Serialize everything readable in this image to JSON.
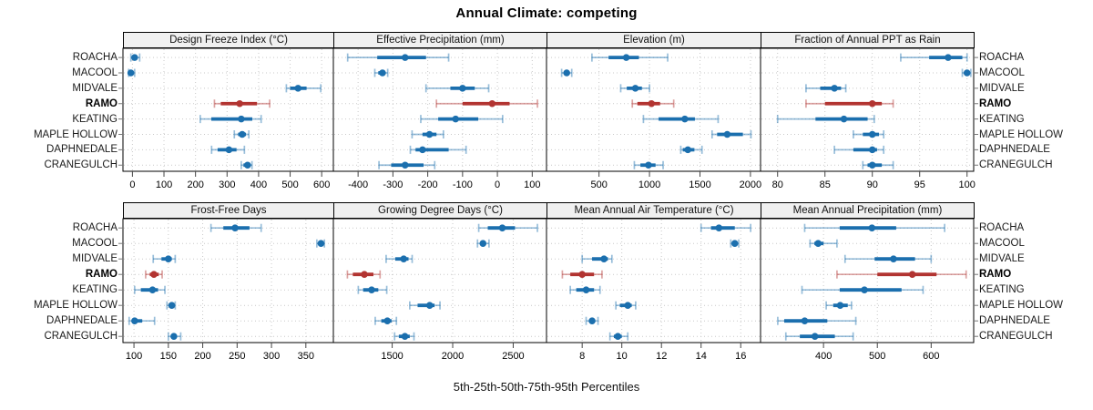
{
  "title": "Annual Climate: competing",
  "xlabel": "5th-25th-50th-75th-95th Percentiles",
  "stations": [
    "ROACHA",
    "MACOOL",
    "MIDVALE",
    "RAMO",
    "KEATING",
    "MAPLE HOLLOW",
    "DAPHNEDALE",
    "CRANEGULCH"
  ],
  "highlight_station": "RAMO",
  "colors": {
    "series": "#1b6fae",
    "highlight": "#b23431",
    "grid": "#c9c9c9",
    "strip_bg": "#f0f0f0",
    "panel_border": "#000000",
    "axis_tick": "#444444",
    "text": "#000000"
  },
  "chart_data": {
    "type": "dot-interval-grid",
    "description": "Trellis of 8 panels; each row shows 5th-25th-50th-75th-95th percentile intervals (whisker = 5th-95th, thick bar = 25th-75th, dot = median) per station; RAMO highlighted in red.",
    "percentiles": [
      "5th",
      "25th",
      "50th",
      "75th",
      "95th"
    ],
    "legend_position": "none",
    "grid": "dotted",
    "panels": [
      {
        "title": "Design Freeze Index (°C)",
        "row": 0,
        "col": 0,
        "xlim": [
          -30,
          637
        ],
        "ticks": [
          0,
          100,
          200,
          300,
          400,
          500,
          600
        ],
        "values": [
          [
            -5,
            0,
            7,
            16,
            23
          ],
          [
            -12,
            -8,
            -5,
            0,
            7
          ],
          [
            488,
            500,
            525,
            552,
            597
          ],
          [
            260,
            280,
            340,
            395,
            435
          ],
          [
            215,
            250,
            345,
            380,
            408
          ],
          [
            323,
            335,
            348,
            360,
            369
          ],
          [
            251,
            270,
            306,
            330,
            355
          ],
          [
            345,
            352,
            365,
            372,
            379
          ]
        ]
      },
      {
        "title": "Effective Precipitation (mm)",
        "row": 0,
        "col": 1,
        "xlim": [
          -471,
          141
        ],
        "ticks": [
          -400,
          -300,
          -200,
          -100,
          0,
          100
        ],
        "values": [
          [
            -430,
            -345,
            -265,
            -205,
            -140
          ],
          [
            -352,
            -342,
            -330,
            -322,
            -315
          ],
          [
            -205,
            -135,
            -100,
            -65,
            -25
          ],
          [
            -175,
            -100,
            -15,
            35,
            115
          ],
          [
            -220,
            -170,
            -120,
            -55,
            15
          ],
          [
            -245,
            -215,
            -195,
            -175,
            -155
          ],
          [
            -250,
            -235,
            -215,
            -140,
            -90
          ],
          [
            -340,
            -305,
            -265,
            -212,
            -180
          ]
        ]
      },
      {
        "title": "Elevation (m)",
        "row": 0,
        "col": 2,
        "xlim": [
          -20,
          2100
        ],
        "ticks": [
          500,
          1000,
          1500,
          2000
        ],
        "values": [
          [
            430,
            595,
            770,
            895,
            1180
          ],
          [
            130,
            160,
            180,
            205,
            230
          ],
          [
            715,
            775,
            860,
            925,
            1000
          ],
          [
            830,
            880,
            1020,
            1105,
            1240
          ],
          [
            940,
            1090,
            1350,
            1450,
            1680
          ],
          [
            1620,
            1670,
            1770,
            1925,
            2005
          ],
          [
            1310,
            1330,
            1380,
            1445,
            1520
          ],
          [
            850,
            910,
            990,
            1060,
            1135
          ]
        ]
      },
      {
        "title": "Fraction of Annual PPT as Rain",
        "row": 0,
        "col": 3,
        "xlim": [
          78.2,
          100.7
        ],
        "ticks": [
          80,
          85,
          90,
          95,
          100
        ],
        "values": [
          [
            93,
            96,
            98,
            99.5,
            100
          ],
          [
            99.5,
            99.8,
            100,
            100.2,
            100.4
          ],
          [
            83,
            84.5,
            86,
            86.7,
            87.2
          ],
          [
            83,
            85,
            90,
            91,
            92.2
          ],
          [
            80,
            84,
            87,
            89.5,
            90.2
          ],
          [
            88,
            89,
            90,
            90.7,
            91.2
          ],
          [
            86,
            88,
            90,
            90.5,
            91.2
          ],
          [
            89,
            89.5,
            90,
            91,
            92.2
          ]
        ]
      },
      {
        "title": "Frost-Free Days",
        "row": 1,
        "col": 0,
        "xlim": [
          84,
          390
        ],
        "ticks": [
          100,
          150,
          200,
          250,
          300,
          350
        ],
        "values": [
          [
            212,
            230,
            247,
            268,
            285
          ],
          [
            366,
            369,
            372,
            374,
            377
          ],
          [
            128,
            140,
            150,
            155,
            160
          ],
          [
            117,
            123,
            129,
            136,
            141
          ],
          [
            101,
            110,
            127,
            135,
            145
          ],
          [
            148,
            152,
            155,
            157,
            160
          ],
          [
            93,
            97,
            101,
            112,
            130
          ],
          [
            150,
            154,
            158,
            162,
            168
          ]
        ]
      },
      {
        "title": "Growing Degree Days (°C)",
        "row": 1,
        "col": 1,
        "xlim": [
          1014,
          2775
        ],
        "ticks": [
          1500,
          2000,
          2500
        ],
        "values": [
          [
            2215,
            2290,
            2410,
            2515,
            2700
          ],
          [
            2205,
            2230,
            2250,
            2275,
            2300
          ],
          [
            1450,
            1525,
            1595,
            1635,
            1665
          ],
          [
            1130,
            1175,
            1270,
            1345,
            1400
          ],
          [
            1220,
            1260,
            1330,
            1385,
            1455
          ],
          [
            1645,
            1710,
            1810,
            1850,
            1895
          ],
          [
            1360,
            1410,
            1460,
            1495,
            1535
          ],
          [
            1520,
            1555,
            1605,
            1645,
            1680
          ]
        ]
      },
      {
        "title": "Mean Annual Air Temperature (°C)",
        "row": 1,
        "col": 2,
        "xlim": [
          6.2,
          17.0
        ],
        "ticks": [
          8,
          10,
          12,
          14,
          16
        ],
        "values": [
          [
            14.0,
            14.5,
            14.9,
            15.7,
            16.5
          ],
          [
            15.5,
            15.6,
            15.7,
            15.8,
            15.9
          ],
          [
            8.0,
            8.5,
            9.1,
            9.3,
            9.5
          ],
          [
            7.0,
            7.4,
            8.0,
            8.6,
            9.0
          ],
          [
            7.4,
            7.7,
            8.2,
            8.6,
            8.9
          ],
          [
            9.7,
            9.9,
            10.3,
            10.5,
            10.7
          ],
          [
            8.2,
            8.35,
            8.5,
            8.65,
            8.8
          ],
          [
            9.4,
            9.6,
            9.8,
            10.0,
            10.3
          ]
        ]
      },
      {
        "title": "Mean Annual Precipitation (mm)",
        "row": 1,
        "col": 3,
        "xlim": [
          283,
          679
        ],
        "ticks": [
          400,
          500,
          600
        ],
        "values": [
          [
            365,
            430,
            490,
            535,
            625
          ],
          [
            375,
            383,
            390,
            400,
            425
          ],
          [
            440,
            495,
            530,
            570,
            600
          ],
          [
            425,
            500,
            565,
            610,
            665
          ],
          [
            360,
            430,
            476,
            545,
            585
          ],
          [
            405,
            418,
            431,
            445,
            452
          ],
          [
            315,
            327,
            365,
            407,
            460
          ],
          [
            330,
            356,
            384,
            421,
            455
          ]
        ]
      }
    ]
  }
}
